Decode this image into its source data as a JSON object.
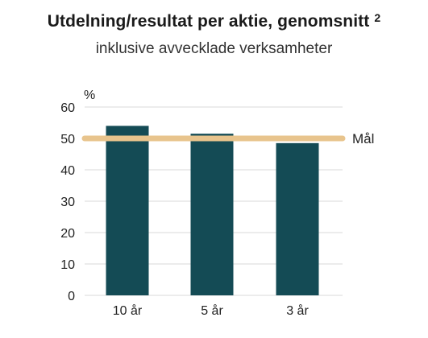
{
  "chart_data": {
    "type": "bar",
    "title": "Utdelning/resultat per aktie, genomsnitt",
    "title_footnote": "2",
    "subtitle": "inklusive avvecklade verksamheter",
    "ylabel": "%",
    "categories": [
      "10 år",
      "5 år",
      "3 år"
    ],
    "values": [
      54,
      51.5,
      48.5
    ],
    "ylim": [
      0,
      60
    ],
    "yticks": [
      0,
      10,
      20,
      30,
      40,
      50,
      60
    ],
    "target": {
      "label": "Mål",
      "value": 50
    },
    "grid": true,
    "colors": {
      "bar": "#144b55",
      "target": "#e8c48d",
      "grid": "#d9d9d9"
    }
  }
}
